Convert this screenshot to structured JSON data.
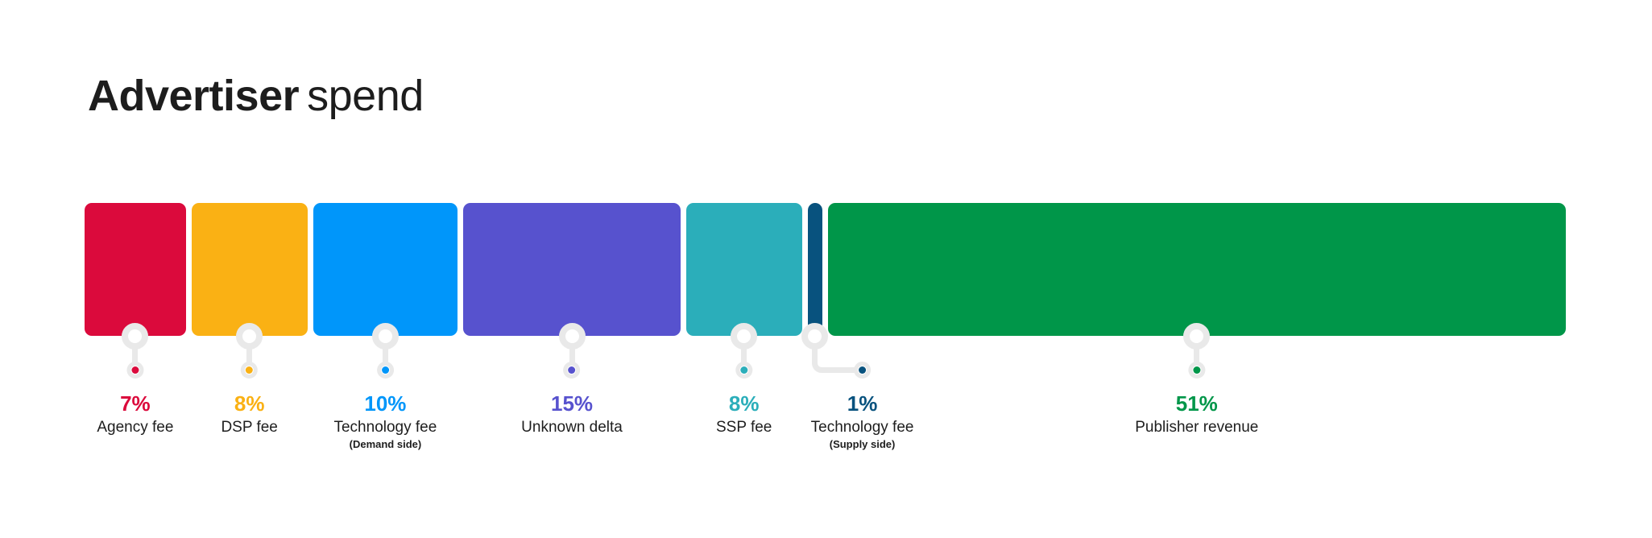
{
  "title": {
    "bold": "Advertiser",
    "light": "spend"
  },
  "colors": {
    "background": "#ffffff",
    "text_dark": "#1e1e1e",
    "connector_gray": "#e9e9e9"
  },
  "chart_data": {
    "type": "bar",
    "subtype": "100-percent-stacked-horizontal-segments",
    "title": "Advertiser spend",
    "unit": "%",
    "total": 100,
    "legend": "none",
    "axes": "none",
    "grid": false,
    "categories": [
      "Agency fee",
      "DSP fee",
      "Technology fee (Demand side)",
      "Unknown delta",
      "SSP fee",
      "Technology fee (Supply side)",
      "Publisher revenue"
    ],
    "values": [
      7,
      8,
      10,
      15,
      8,
      1,
      51
    ],
    "segments": [
      {
        "label": "Agency fee",
        "sublabel": "",
        "value": 7,
        "pct": "7%",
        "color": "#db0a3c",
        "label_dx": 0,
        "elbow": false
      },
      {
        "label": "DSP fee",
        "sublabel": "",
        "value": 8,
        "pct": "8%",
        "color": "#fab114",
        "label_dx": 0,
        "elbow": false
      },
      {
        "label": "Technology fee",
        "sublabel": "(Demand side)",
        "value": 10,
        "pct": "10%",
        "color": "#0096fa",
        "label_dx": 0,
        "elbow": false
      },
      {
        "label": "Unknown delta",
        "sublabel": "",
        "value": 15,
        "pct": "15%",
        "color": "#5752ce",
        "label_dx": 0,
        "elbow": false
      },
      {
        "label": "SSP fee",
        "sublabel": "",
        "value": 8,
        "pct": "8%",
        "color": "#2baeba",
        "label_dx": 0,
        "elbow": false
      },
      {
        "label": "Technology fee",
        "sublabel": "(Supply side)",
        "value": 1,
        "pct": "1%",
        "color": "#08527e",
        "label_dx": 59,
        "elbow": true
      },
      {
        "label": "Publisher revenue",
        "sublabel": "",
        "value": 51,
        "pct": "51%",
        "color": "#009649",
        "label_dx": 0,
        "elbow": false
      }
    ]
  }
}
